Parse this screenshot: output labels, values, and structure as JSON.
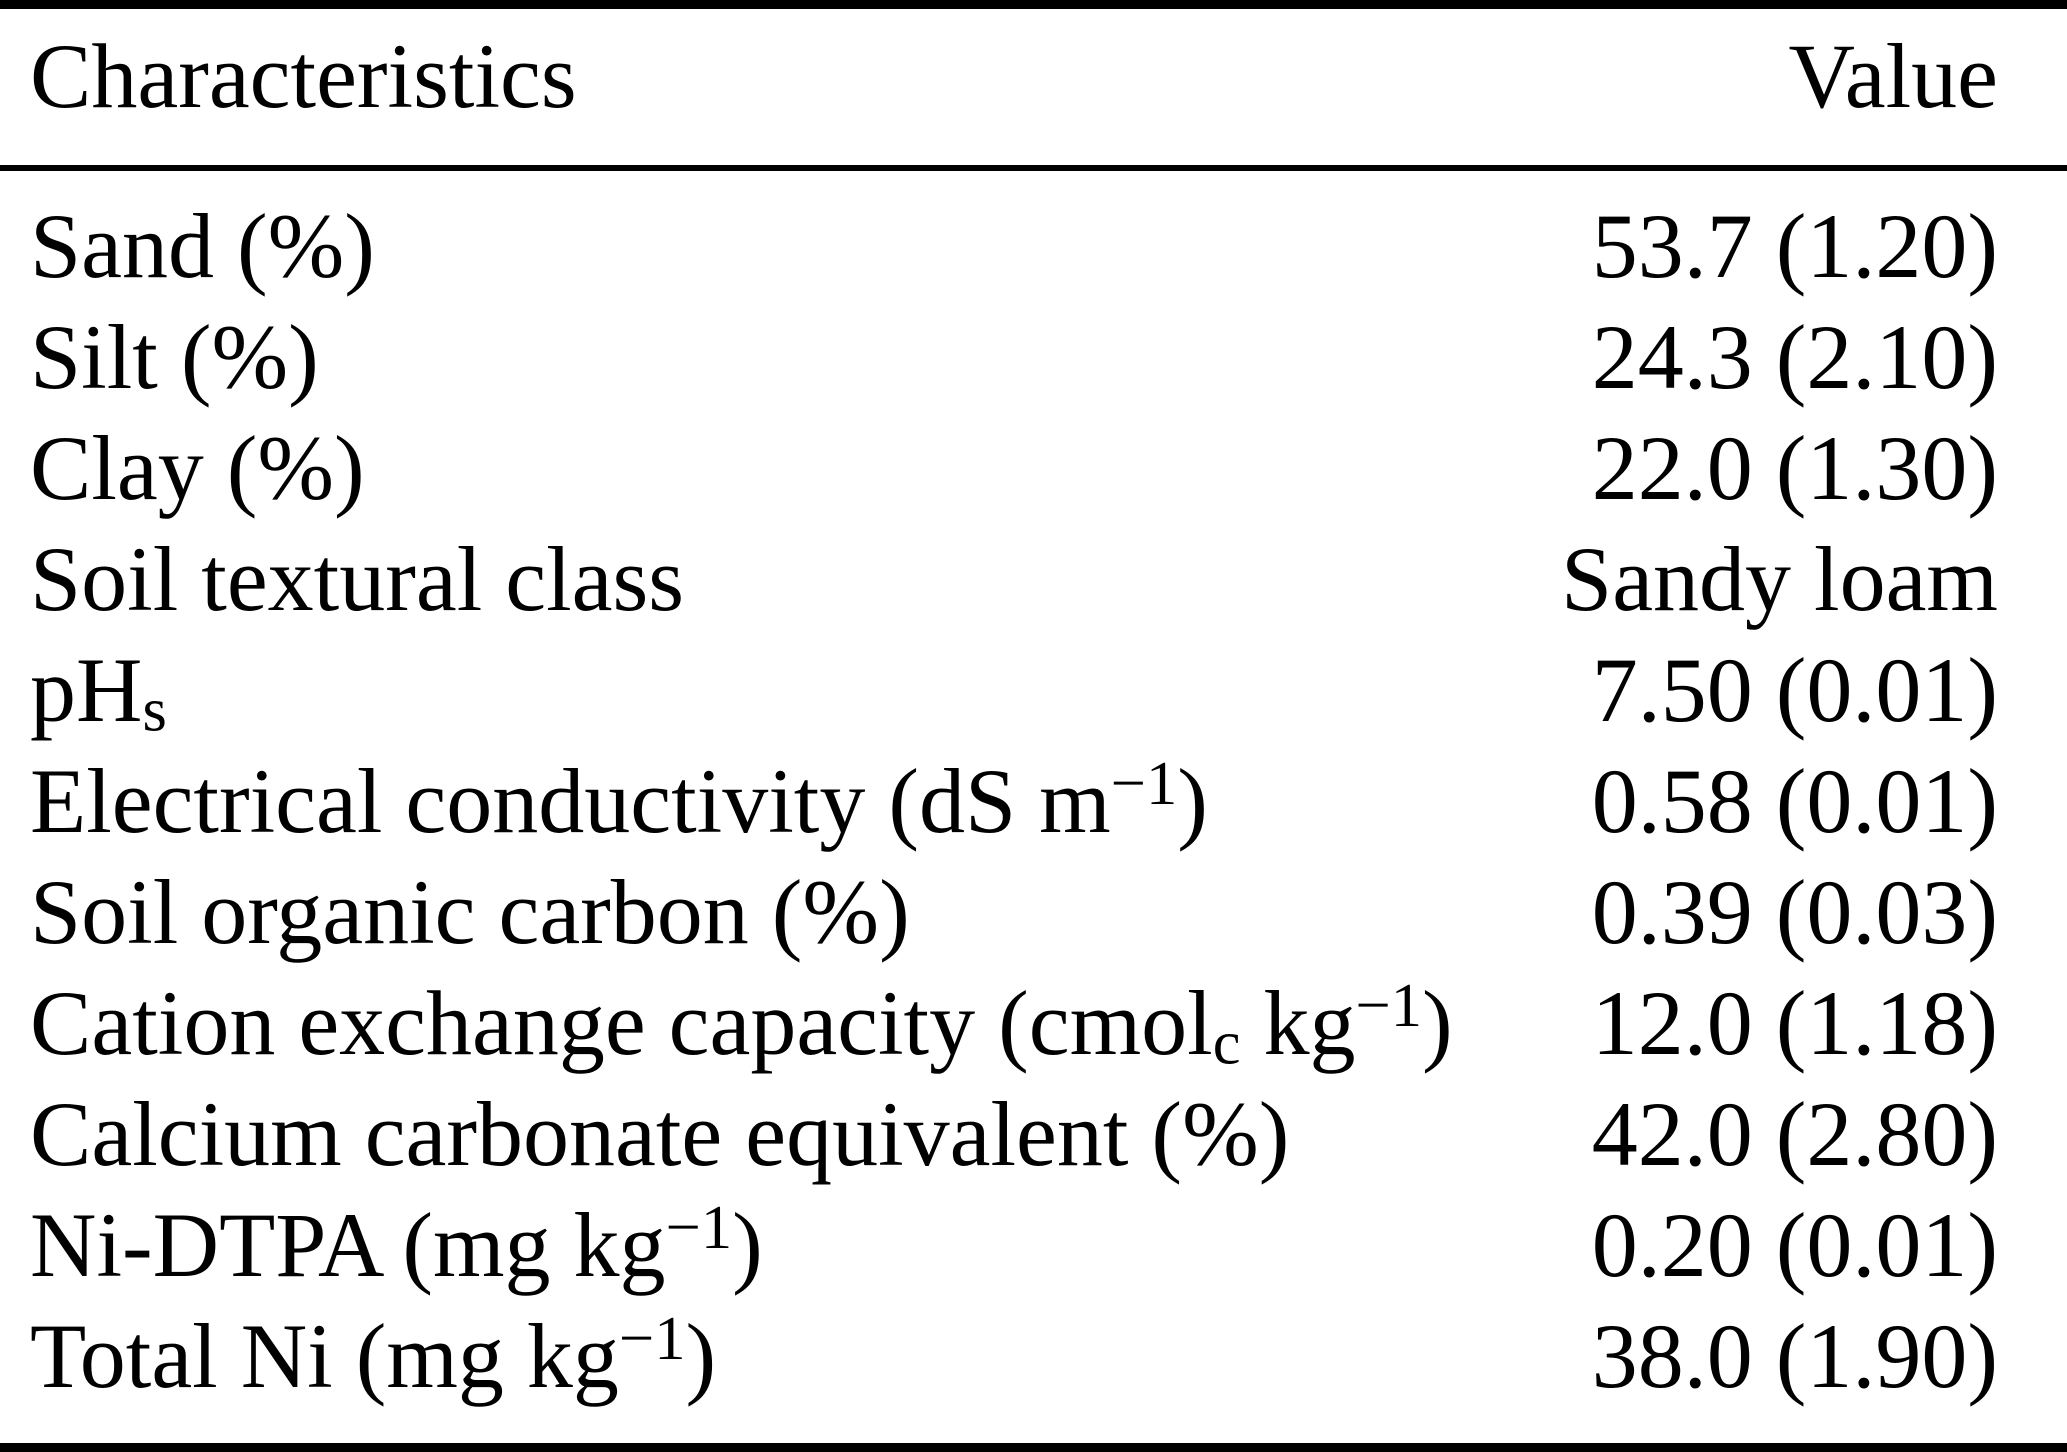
{
  "colors": {
    "background": "#ffffff",
    "text": "#000000",
    "rule": "#000000"
  },
  "table": {
    "columns": [
      "Characteristics",
      "Value"
    ],
    "rows": [
      {
        "label": [
          [
            "n",
            "Sand (%)"
          ]
        ],
        "value": "53.7 (1.20)"
      },
      {
        "label": [
          [
            "n",
            "Silt (%)"
          ]
        ],
        "value": "24.3 (2.10)"
      },
      {
        "label": [
          [
            "n",
            "Clay (%)"
          ]
        ],
        "value": "22.0 (1.30)"
      },
      {
        "label": [
          [
            "n",
            "Soil textural class"
          ]
        ],
        "value": "Sandy loam"
      },
      {
        "label": [
          [
            "n",
            "pH"
          ],
          [
            "sub",
            "s"
          ]
        ],
        "value": "7.50 (0.01)"
      },
      {
        "label": [
          [
            "n",
            "Electrical conductivity (dS m"
          ],
          [
            "sup",
            "−1"
          ],
          [
            "n",
            ")"
          ]
        ],
        "value": "0.58 (0.01)"
      },
      {
        "label": [
          [
            "n",
            "Soil organic carbon (%)"
          ]
        ],
        "value": "0.39 (0.03)"
      },
      {
        "label": [
          [
            "n",
            "Cation exchange capacity (cmol"
          ],
          [
            "sub",
            "c"
          ],
          [
            "n",
            " kg"
          ],
          [
            "sup",
            "−1"
          ],
          [
            "n",
            ")"
          ]
        ],
        "value": "12.0 (1.18)"
      },
      {
        "label": [
          [
            "n",
            "Calcium carbonate equivalent (%)"
          ]
        ],
        "value": "42.0 (2.80)"
      },
      {
        "label": [
          [
            "n",
            "Ni-DTPA (mg kg"
          ],
          [
            "sup",
            "−1"
          ],
          [
            "n",
            ")"
          ]
        ],
        "value": "0.20 (0.01)"
      },
      {
        "label": [
          [
            "n",
            "Total Ni (mg kg"
          ],
          [
            "sup",
            "−1"
          ],
          [
            "n",
            ")"
          ]
        ],
        "value": "38.0 (1.90)"
      }
    ]
  }
}
